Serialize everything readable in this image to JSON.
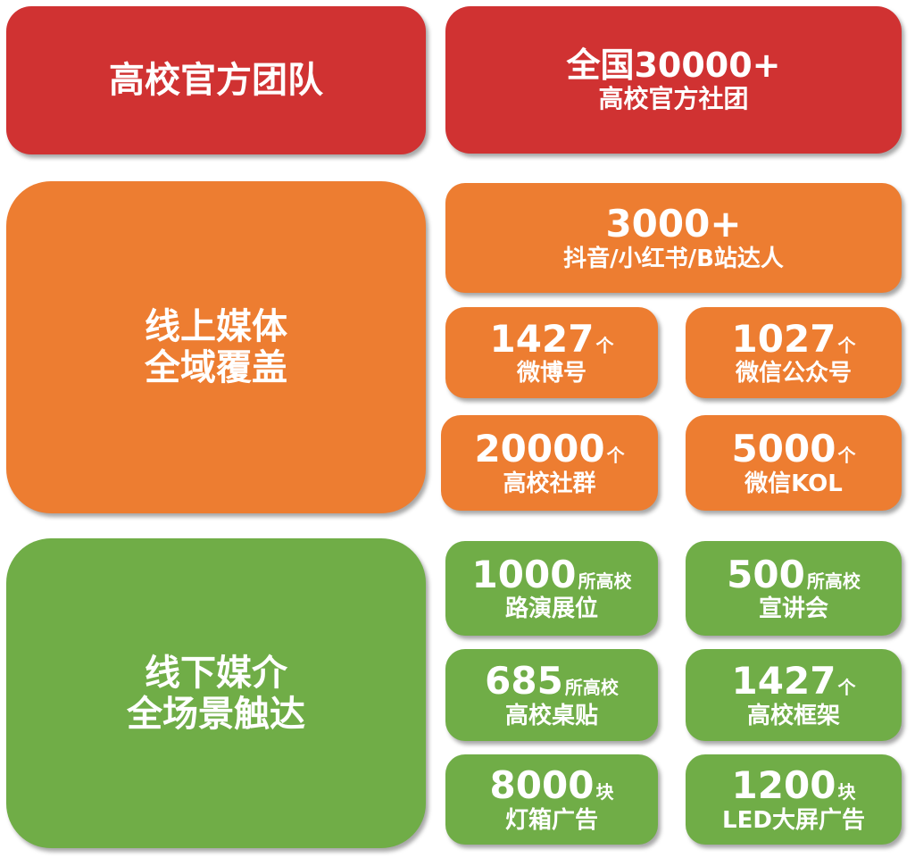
{
  "colors": {
    "red": "#d03232",
    "orange": "#ed7d31",
    "green": "#70ad47"
  },
  "team": {
    "title": "高校官方团队",
    "stat_line1": "全国30000+",
    "stat_line2": "高校官方社团"
  },
  "online": {
    "title_line1": "线上媒体",
    "title_line2": "全域覆盖",
    "top": {
      "value": "3000+",
      "label": "抖音/小红书/B站达人"
    },
    "items": [
      {
        "value": "1427",
        "unit": "个",
        "label": "微博号"
      },
      {
        "value": "1027",
        "unit": "个",
        "label": "微信公众号"
      },
      {
        "value": "20000",
        "unit": "个",
        "label": "高校社群"
      },
      {
        "value": "5000",
        "unit": "个",
        "label": "微信KOL"
      }
    ]
  },
  "offline": {
    "title_line1": "线下媒介",
    "title_line2": "全场景触达",
    "items": [
      {
        "value": "1000",
        "unit": "所高校",
        "label": "路演展位"
      },
      {
        "value": "500",
        "unit": "所高校",
        "label": "宣讲会"
      },
      {
        "value": "685",
        "unit": "所高校",
        "label": "高校桌贴"
      },
      {
        "value": "1427",
        "unit": "个",
        "label": "高校框架"
      },
      {
        "value": "8000",
        "unit": "块",
        "label": "灯箱广告"
      },
      {
        "value": "1200",
        "unit": "块",
        "label": "LED大屏广告"
      }
    ]
  }
}
